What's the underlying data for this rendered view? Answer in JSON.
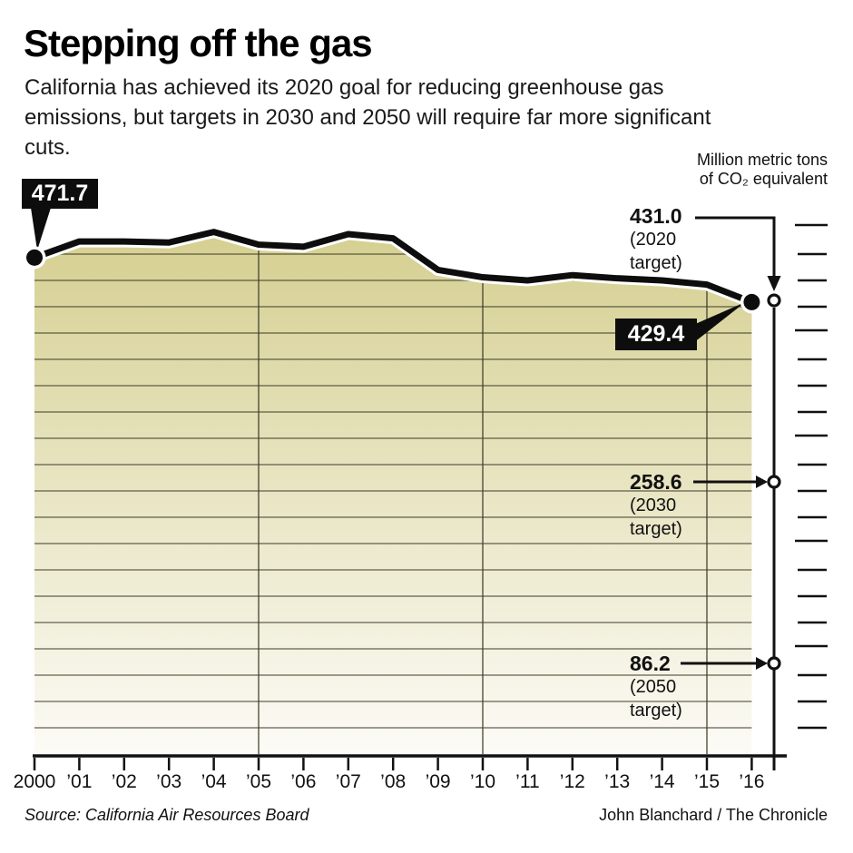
{
  "header": {
    "title": "Stepping off the gas",
    "subtitle": "California has achieved its 2020 goal for reducing greenhouse gas emissions, but targets in 2030 and 2050 will require far more significant cuts."
  },
  "axis_unit": {
    "line1": "Million metric tons",
    "line2": "of CO₂ equivalent"
  },
  "chart_data": {
    "type": "area",
    "title": "Stepping off the gas",
    "ylabel": "Million metric tons of CO₂ equivalent",
    "x": [
      2000,
      2001,
      2002,
      2003,
      2004,
      2005,
      2006,
      2007,
      2008,
      2009,
      2010,
      2011,
      2012,
      2013,
      2014,
      2015,
      2016
    ],
    "x_tick_labels": [
      "2000",
      "’01",
      "’02",
      "’03",
      "’04",
      "’05",
      "’06",
      "’07",
      "’08",
      "’09",
      "’10",
      "’11",
      "’12",
      "’13",
      "’14",
      "’15",
      "’16"
    ],
    "series": [
      {
        "name": "California greenhouse gas emissions (million metric tons CO₂ equivalent)",
        "values": [
          471.7,
          487,
          487,
          486,
          496,
          484,
          482,
          494,
          490,
          460,
          453,
          450,
          455,
          452,
          450,
          446,
          429.4
        ]
      }
    ],
    "ylim": [
      0,
      500
    ],
    "y_major_ticks": [
      500,
      400,
      300,
      200,
      100,
      0
    ],
    "y_minor_step": 25,
    "x_gridline_years": [
      2005,
      2010,
      2015
    ],
    "grid": true,
    "legend_position": "none",
    "point_labels": [
      {
        "year": 2000,
        "value": 471.7,
        "label": "471.7"
      },
      {
        "year": 2016,
        "value": 429.4,
        "label": "429.4"
      }
    ],
    "targets": [
      {
        "value": 431.0,
        "label": "431.0",
        "note": "(2020 target)"
      },
      {
        "value": 258.6,
        "label": "258.6",
        "note": "(2030 target)"
      },
      {
        "value": 86.2,
        "label": "86.2",
        "note": "(2050 target)"
      }
    ]
  },
  "colors": {
    "area_top": "#d5cf90",
    "area_bottom": "#fcfbf6",
    "line": "#0d0d0d",
    "grid": "rgba(60,60,40,0.5)",
    "grid_vertical": "rgba(60,60,40,0.62)",
    "axis": "#111111",
    "callout_bg": "#0d0d0d",
    "callout_text": "#ffffff"
  },
  "footer": {
    "source": "Source: California Air Resources Board",
    "credit": "John Blanchard / The Chronicle"
  }
}
